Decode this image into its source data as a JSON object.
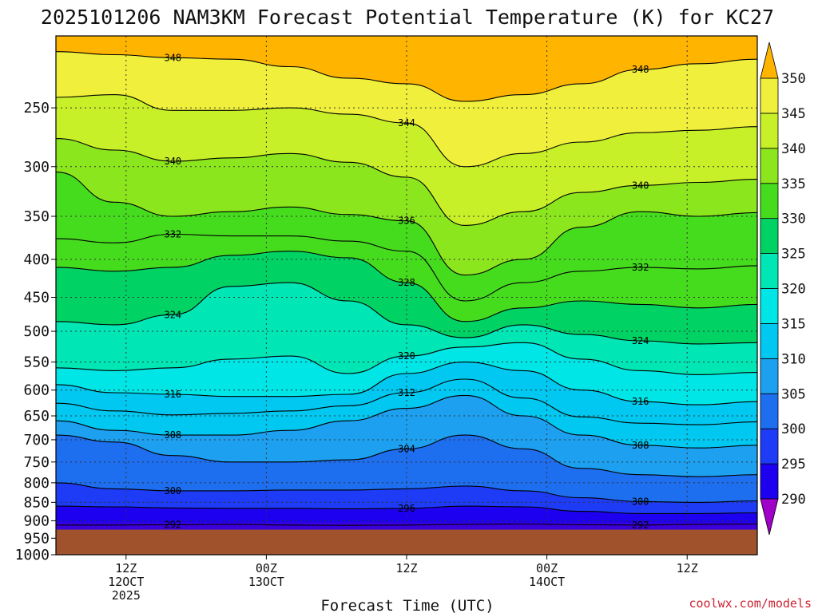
{
  "credit": "coolwx.com/models",
  "chart_data": {
    "type": "heatmap",
    "title": "2025101206 NAM3KM Forecast Potential Temperature (K) for KC27",
    "xlabel": "Forecast Time (UTC)",
    "ylabel": "",
    "x_range_hours_after_init": [
      0,
      60
    ],
    "y_range_hpa": [
      200,
      1000
    ],
    "y_scale": "log-pressure",
    "y_ticks": [
      250,
      300,
      350,
      400,
      450,
      500,
      550,
      600,
      650,
      700,
      750,
      800,
      850,
      900,
      950,
      1000
    ],
    "y_tick_labels": [
      "250",
      "300",
      "350",
      "400",
      "450",
      "500",
      "550",
      "600",
      "650",
      "700",
      "750",
      "800",
      "850",
      "900",
      "950",
      "1000"
    ],
    "x_ticks": [
      {
        "hour": 6,
        "line1": "12Z",
        "line2": "12OCT",
        "line3": "2025"
      },
      {
        "hour": 18,
        "line1": "00Z",
        "line2": "13OCT",
        "line3": ""
      },
      {
        "hour": 30,
        "line1": "12Z",
        "line2": "",
        "line3": ""
      },
      {
        "hour": 42,
        "line1": "00Z",
        "line2": "14OCT",
        "line3": ""
      },
      {
        "hour": 54,
        "line1": "12Z",
        "line2": "",
        "line3": ""
      }
    ],
    "colorbar": {
      "levels": [
        290,
        295,
        300,
        305,
        310,
        315,
        320,
        325,
        330,
        335,
        340,
        345,
        350
      ],
      "labels": [
        "290",
        "295",
        "300",
        "305",
        "310",
        "315",
        "320",
        "325",
        "330",
        "335",
        "340",
        "345",
        "350"
      ],
      "colors": [
        "#3c00dc",
        "#1e00f0",
        "#1e3cf5",
        "#1e6ef0",
        "#1ea0f0",
        "#00c8f0",
        "#00e6e6",
        "#00e6b4",
        "#00d264",
        "#46dc1e",
        "#8ce61e",
        "#c8f028",
        "#f0f03c",
        "#ffd21e"
      ],
      "under_color": "#a000c8",
      "over_color": "#ffb400"
    },
    "ground": {
      "pressure_hpa": 925,
      "color": "#a0522d"
    },
    "isentropes": [
      {
        "theta": 292,
        "p": [
          912,
          912,
          911,
          910,
          912,
          913,
          912,
          910,
          909,
          911,
          912,
          910,
          909
        ]
      },
      {
        "theta": 296,
        "p": [
          860,
          862,
          865,
          866,
          866,
          867,
          866,
          860,
          862,
          874,
          880,
          880,
          878
        ]
      },
      {
        "theta": 300,
        "p": [
          800,
          815,
          820,
          820,
          818,
          818,
          815,
          808,
          820,
          838,
          848,
          850,
          846
        ]
      },
      {
        "theta": 304,
        "p": [
          690,
          705,
          735,
          750,
          750,
          745,
          720,
          690,
          720,
          765,
          780,
          785,
          780
        ]
      },
      {
        "theta": 308,
        "p": [
          660,
          680,
          690,
          690,
          680,
          660,
          635,
          610,
          650,
          690,
          712,
          718,
          712
        ]
      },
      {
        "theta": 312,
        "p": [
          625,
          640,
          648,
          645,
          640,
          630,
          605,
          580,
          615,
          652,
          665,
          668,
          662
        ]
      },
      {
        "theta": 316,
        "p": [
          590,
          605,
          608,
          612,
          612,
          608,
          570,
          550,
          565,
          600,
          622,
          628,
          622
        ]
      },
      {
        "theta": 320,
        "p": [
          560,
          565,
          560,
          545,
          540,
          570,
          540,
          525,
          518,
          545,
          565,
          572,
          568
        ]
      },
      {
        "theta": 324,
        "p": [
          485,
          490,
          475,
          435,
          430,
          455,
          490,
          510,
          490,
          505,
          515,
          520,
          518
        ]
      },
      {
        "theta": 328,
        "p": [
          410,
          415,
          410,
          395,
          390,
          398,
          430,
          485,
          465,
          455,
          460,
          465,
          460
        ]
      },
      {
        "theta": 332,
        "p": [
          375,
          380,
          370,
          372,
          372,
          378,
          390,
          455,
          430,
          415,
          410,
          412,
          408
        ]
      },
      {
        "theta": 336,
        "p": [
          305,
          335,
          350,
          345,
          340,
          348,
          355,
          420,
          400,
          362,
          345,
          350,
          346
        ]
      },
      {
        "theta": 340,
        "p": [
          275,
          285,
          295,
          292,
          288,
          296,
          310,
          360,
          345,
          325,
          318,
          315,
          312
        ]
      },
      {
        "theta": 344,
        "p": [
          242,
          240,
          252,
          252,
          250,
          255,
          262,
          300,
          288,
          278,
          270,
          268,
          265
        ]
      },
      {
        "theta": 348,
        "p": [
          210,
          212,
          214,
          215,
          220,
          228,
          232,
          245,
          240,
          232,
          222,
          218,
          215
        ]
      }
    ],
    "isentrope_hours": [
      0,
      5,
      10,
      15,
      20,
      25,
      30,
      35,
      40,
      45,
      50,
      55,
      60
    ]
  }
}
